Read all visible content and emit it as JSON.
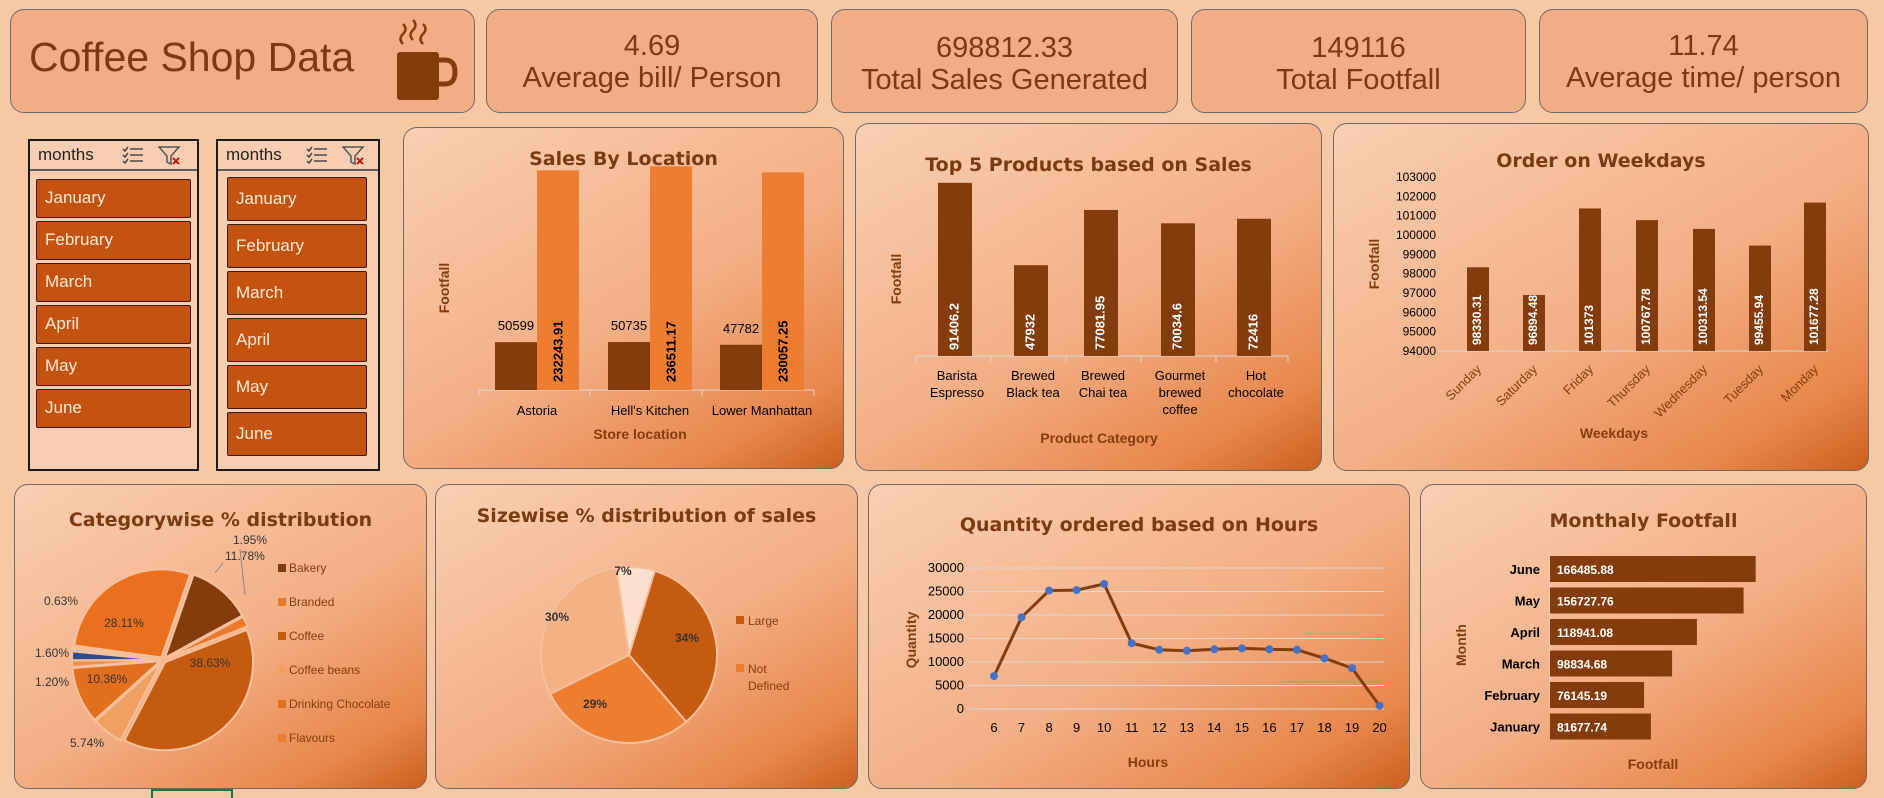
{
  "header": {
    "title": "Coffee Shop Data",
    "logo_icon": "coffee-cup-icon"
  },
  "kpis": [
    {
      "value": "4.69",
      "label": "Average bill/ Person"
    },
    {
      "value": "698812.33",
      "label": "Total Sales Generated"
    },
    {
      "value": "149116",
      "label": "Total Footfall"
    },
    {
      "value": "11.74",
      "label": "Average time/ person"
    }
  ],
  "slicers": [
    {
      "header": "months",
      "items": [
        "January",
        "February",
        "March",
        "April",
        "May",
        "June"
      ]
    },
    {
      "header": "months",
      "items": [
        "January",
        "February",
        "March",
        "April",
        "May",
        "June"
      ]
    }
  ],
  "colors": {
    "dark": "#843c0c",
    "mid": "#c55a11",
    "orange": "#ed7d31",
    "light": "#f4b183",
    "blue": "#4472c4"
  },
  "chart_data": [
    {
      "id": "sales_by_location",
      "type": "bar",
      "title": "Sales By Location",
      "xlabel": "Store location",
      "ylabel": "Footfall",
      "categories": [
        "Astoria",
        "Hell's Kitchen",
        "Lower Manhattan"
      ],
      "series": [
        {
          "values": [
            50599,
            50735,
            47782
          ],
          "labels": [
            "50599",
            "50735",
            "47782"
          ]
        },
        {
          "values": [
            232243.91,
            236511.17,
            230057.25
          ],
          "labels": [
            "232243.91",
            "236511.17",
            "230057.25"
          ]
        }
      ]
    },
    {
      "id": "top5_products",
      "type": "bar",
      "title": "Top 5 Products based  on Sales",
      "xlabel": "Product Category",
      "ylabel": "Footfall",
      "categories": [
        [
          "Barista",
          "Espresso"
        ],
        [
          "Brewed",
          "Black tea"
        ],
        [
          "Brewed",
          "Chai tea"
        ],
        [
          "Gourmet",
          "brewed",
          "coffee"
        ],
        [
          "Hot",
          "chocolate"
        ]
      ],
      "values": [
        91406.2,
        47932,
        77081.95,
        70034.6,
        72416
      ],
      "labels": [
        "91406.2",
        "47932",
        "77081.95",
        "70034.6",
        "72416"
      ]
    },
    {
      "id": "order_weekdays",
      "type": "bar",
      "title": "Order on Weekdays",
      "xlabel": "Weekdays",
      "ylabel": "Footfall",
      "categories": [
        "Sunday",
        "Saturday",
        "Friday",
        "Thursday",
        "Wednesday",
        "Tuesday",
        "Monday"
      ],
      "values": [
        98330.31,
        96894.48,
        101373,
        100767.78,
        100313.54,
        99455.94,
        101677.28
      ],
      "labels": [
        "98330.31",
        "96894.48",
        "101373",
        "100767.78",
        "100313.54",
        "99455.94",
        "101677.28"
      ],
      "ylim": [
        94000,
        103000
      ],
      "yticks": [
        "94000",
        "95000",
        "96000",
        "97000",
        "98000",
        "99000",
        "100000",
        "101000",
        "102000",
        "103000"
      ]
    },
    {
      "id": "category_distribution",
      "type": "pie",
      "title": "Categorywise % distribution",
      "legend": [
        "Bakery",
        "Branded",
        "Coffee",
        "Coffee beans",
        "Drinking Chocolate",
        "Flavours"
      ],
      "slices": [
        {
          "value": 11.78,
          "label": "11.78%",
          "color": "#843c0c"
        },
        {
          "value": 1.95,
          "label": "1.95%",
          "color": "#e97a2e"
        },
        {
          "value": 38.63,
          "label": "38.63%",
          "color": "#c55a11"
        },
        {
          "value": 5.74,
          "label": "5.74%",
          "color": "#f0a060"
        },
        {
          "value": 10.36,
          "label": "10.36%",
          "color": "#e06f1e"
        },
        {
          "value": 1.2,
          "label": "1.20%",
          "color": "#f09050"
        },
        {
          "value": 1.6,
          "label": "1.60%",
          "color": "#2f4a8a"
        },
        {
          "value": 0.63,
          "label": "0.63%",
          "color": "#c0c0c0"
        },
        {
          "value": 28.11,
          "label": "28.11%",
          "color": "#e8701e"
        }
      ]
    },
    {
      "id": "size_distribution",
      "type": "pie",
      "title": "Sizewise % distribution of sales",
      "legend": [
        "Large",
        [
          "Not",
          "Defined"
        ]
      ],
      "slices": [
        {
          "value": 34,
          "label": "34%",
          "color": "#c55a11"
        },
        {
          "value": 29,
          "label": "29%",
          "color": "#ed7d31"
        },
        {
          "value": 30,
          "label": "30%",
          "color": "#f4b183"
        },
        {
          "value": 7,
          "label": "7%",
          "color": "#fbe1cd"
        }
      ]
    },
    {
      "id": "quantity_hours",
      "type": "line",
      "title": "Quantity ordered based on Hours",
      "xlabel": "Hours",
      "ylabel": "Quantity",
      "x": [
        "6",
        "7",
        "8",
        "9",
        "10",
        "11",
        "12",
        "13",
        "14",
        "15",
        "16",
        "17",
        "18",
        "19",
        "20"
      ],
      "values": [
        7000,
        19500,
        25200,
        25300,
        26600,
        14000,
        12600,
        12400,
        12700,
        12900,
        12700,
        12600,
        10800,
        8700,
        700
      ],
      "ylim": [
        0,
        30000
      ],
      "yticks": [
        "0",
        "5000",
        "10000",
        "15000",
        "20000",
        "25000",
        "30000"
      ]
    },
    {
      "id": "monthly_footfall",
      "type": "bar",
      "title": "Monthaly Footfall",
      "xlabel": "Footfall",
      "ylabel": "Month",
      "categories": [
        "June",
        "May",
        "April",
        "March",
        "February",
        "January"
      ],
      "values": [
        166485.88,
        156727.76,
        118941.08,
        98834.68,
        76145.19,
        81677.74
      ],
      "labels": [
        "166485.88",
        "156727.76",
        "118941.08",
        "98834.68",
        "76145.19",
        "81677.74"
      ]
    }
  ]
}
